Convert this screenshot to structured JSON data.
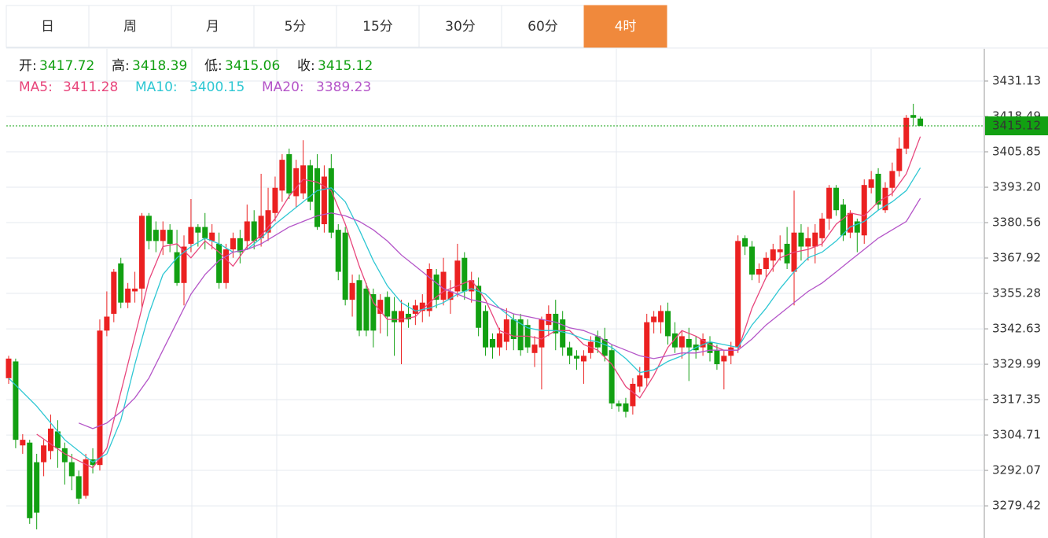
{
  "tabs": [
    "日",
    "周",
    "月",
    "5分",
    "15分",
    "30分",
    "60分",
    "4时"
  ],
  "active_tab": 7,
  "chart_data": {
    "type": "candlestick",
    "ohlc_labels": [
      "开:",
      "高:",
      "低:",
      "收:"
    ],
    "up_color": "#eb2121",
    "down_color": "#12a012",
    "open": [
      3325,
      3331,
      3301,
      3302,
      3295,
      3295,
      3299,
      3306,
      3300,
      3295,
      3290,
      3283,
      3296,
      3294,
      3342,
      3348,
      3366,
      3352,
      3356,
      3357,
      3383,
      3378,
      3374,
      3378,
      3370,
      3359,
      3373,
      3379,
      3379,
      3374,
      3373,
      3359,
      3371,
      3375,
      3374,
      3381,
      3375,
      3377,
      3384,
      3392,
      3405,
      3390,
      3391,
      3401,
      3400,
      3380,
      3400,
      3378,
      3377,
      3353,
      3360,
      3357,
      3355,
      3348,
      3354,
      3349,
      3345,
      3348,
      3348,
      3349,
      3349,
      3362,
      3353,
      3353,
      3356,
      3368,
      3356,
      3358,
      3349,
      3339,
      3336,
      3338,
      3346,
      3346,
      3344,
      3334,
      3336,
      3344,
      3348,
      3346,
      3336,
      3333,
      3331,
      3334,
      3340,
      3339,
      3335,
      3316,
      3316,
      3315,
      3322,
      3325,
      3345,
      3345,
      3349,
      3341,
      3336,
      3339,
      3337,
      3336,
      3338,
      3335,
      3331,
      3333,
      3336,
      3375,
      3372,
      3362,
      3364,
      3367,
      3370,
      3373,
      3363,
      3377,
      3372,
      3372,
      3375,
      3382,
      3393,
      3387,
      3377,
      3381,
      3376,
      3393,
      3398,
      3385,
      3393,
      3399,
      3407,
      3419,
      3417.72
    ],
    "high": [
      3333,
      3332,
      3305,
      3303,
      3298,
      3303,
      3312,
      3310,
      3302,
      3298,
      3292,
      3298,
      3300,
      3346,
      3356,
      3364,
      3368,
      3359,
      3363,
      3384,
      3384,
      3381,
      3381,
      3380,
      3378,
      3376,
      3389,
      3380,
      3384,
      3380,
      3377,
      3373,
      3377,
      3378,
      3387,
      3385,
      3398,
      3393,
      3397,
      3405,
      3407,
      3403,
      3410,
      3403,
      3405,
      3401,
      3405,
      3380,
      3379,
      3362,
      3362,
      3359,
      3357,
      3355,
      3356,
      3354,
      3353,
      3352,
      3353,
      3355,
      3366,
      3364,
      3368,
      3360,
      3373,
      3370,
      3363,
      3361,
      3351,
      3341,
      3343,
      3350,
      3348,
      3348,
      3346,
      3340,
      3347,
      3351,
      3353,
      3349,
      3338,
      3335,
      3335,
      3340,
      3342,
      3343,
      3337,
      3317,
      3318,
      3325,
      3329,
      3348,
      3349,
      3351,
      3352,
      3345,
      3342,
      3343,
      3340,
      3341,
      3340,
      3337,
      3335,
      3338,
      3376,
      3376,
      3374,
      3366,
      3370,
      3373,
      3376,
      3379,
      3392,
      3380,
      3379,
      3380,
      3384,
      3394,
      3394,
      3389,
      3385,
      3382,
      3396,
      3399,
      3400,
      3395,
      3402,
      3411,
      3419,
      3423,
      3418.39
    ],
    "low": [
      3323,
      3300,
      3298,
      3273,
      3271,
      3290,
      3296,
      3293,
      3287,
      3285,
      3280,
      3282,
      3291,
      3292,
      3340,
      3345,
      3350,
      3350,
      3352,
      3350,
      3371,
      3370,
      3369,
      3370,
      3358,
      3351,
      3370,
      3372,
      3371,
      3371,
      3357,
      3357,
      3368,
      3366,
      3371,
      3371,
      3372,
      3374,
      3381,
      3388,
      3389,
      3386,
      3389,
      3385,
      3378,
      3377,
      3375,
      3360,
      3351,
      3347,
      3340,
      3340,
      3336,
      3341,
      3340,
      3333,
      3330,
      3343,
      3344,
      3345,
      3347,
      3350,
      3351,
      3348,
      3354,
      3353,
      3352,
      3340,
      3333,
      3332,
      3333,
      3335,
      3335,
      3333,
      3334,
      3329,
      3321,
      3340,
      3335,
      3333,
      3330,
      3328,
      3323,
      3332,
      3334,
      3331,
      3314,
      3313,
      3311,
      3312,
      3320,
      3322,
      3341,
      3341,
      3337,
      3334,
      3332,
      3324,
      3332,
      3333,
      3331,
      3328,
      3321,
      3330,
      3334,
      3369,
      3360,
      3359,
      3361,
      3363,
      3367,
      3364,
      3351,
      3367,
      3367,
      3366,
      3372,
      3378,
      3383,
      3374,
      3375,
      3370,
      3373,
      3391,
      3385,
      3384,
      3390,
      3397,
      3405,
      3415,
      3415.06
    ],
    "close": [
      3332,
      3303,
      3303,
      3275,
      3277,
      3301,
      3307,
      3300,
      3295,
      3290,
      3282,
      3296,
      3294,
      3342,
      3347,
      3363,
      3352,
      3357,
      3357,
      3383,
      3374,
      3374,
      3378,
      3373,
      3359,
      3372,
      3379,
      3377,
      3375,
      3377,
      3359,
      3371,
      3375,
      3370,
      3381,
      3374,
      3383,
      3385,
      3393,
      3403,
      3391,
      3400,
      3401,
      3388,
      3379,
      3397,
      3377,
      3363,
      3353,
      3359,
      3342,
      3342,
      3342,
      3353,
      3347,
      3345,
      3349,
      3346,
      3351,
      3352,
      3364,
      3353,
      3363,
      3356,
      3367,
      3356,
      3360,
      3343,
      3336,
      3336,
      3341,
      3346,
      3339,
      3335,
      3336,
      3337,
      3346,
      3348,
      3341,
      3336,
      3333,
      3332,
      3333,
      3338,
      3336,
      3333,
      3316,
      3315,
      3313,
      3323,
      3326,
      3345,
      3347,
      3349,
      3340,
      3336,
      3340,
      3336,
      3335,
      3339,
      3334,
      3330,
      3333,
      3336,
      3374,
      3372,
      3362,
      3364,
      3368,
      3371,
      3371,
      3366,
      3377,
      3372,
      3375,
      3377,
      3382,
      3393,
      3385,
      3376,
      3384,
      3377,
      3394,
      3396,
      3387,
      3393,
      3399,
      3407,
      3418,
      3418,
      3415.12
    ],
    "series": [
      {
        "name": "MA5:",
        "color": "#e8467c",
        "x": [
          4,
          8,
          12,
          14,
          16,
          18,
          20,
          22,
          24,
          26,
          28,
          30,
          32,
          34,
          36,
          38,
          40,
          42,
          44,
          46,
          48,
          50,
          52,
          54,
          56,
          58,
          60,
          62,
          64,
          66,
          68,
          70,
          72,
          74,
          76,
          78,
          80,
          82,
          84,
          86,
          88,
          90,
          92,
          94,
          96,
          98,
          100,
          102,
          104,
          106,
          108,
          110,
          112,
          114,
          116,
          118,
          120,
          122,
          124,
          126,
          128,
          130
        ],
        "values": [
          3305,
          3298,
          3293,
          3300,
          3320,
          3340,
          3360,
          3372,
          3373,
          3368,
          3374,
          3370,
          3365,
          3372,
          3376,
          3382,
          3390,
          3396,
          3395,
          3392,
          3380,
          3365,
          3352,
          3346,
          3346,
          3347,
          3352,
          3356,
          3358,
          3360,
          3353,
          3342,
          3340,
          3340,
          3339,
          3342,
          3342,
          3337,
          3335,
          3330,
          3322,
          3318,
          3326,
          3336,
          3342,
          3340,
          3337,
          3335,
          3335,
          3350,
          3361,
          3368,
          3370,
          3371,
          3373,
          3380,
          3384,
          3383,
          3388,
          3391,
          3398,
          3411.28
        ]
      },
      {
        "name": "MA10:",
        "color": "#2ec7d3",
        "x": [
          0,
          4,
          8,
          12,
          14,
          16,
          18,
          20,
          22,
          24,
          26,
          28,
          30,
          32,
          34,
          36,
          38,
          40,
          42,
          44,
          46,
          48,
          50,
          52,
          54,
          56,
          58,
          60,
          62,
          64,
          66,
          68,
          70,
          72,
          74,
          76,
          78,
          80,
          82,
          84,
          86,
          88,
          90,
          92,
          94,
          96,
          98,
          100,
          102,
          104,
          106,
          108,
          110,
          112,
          114,
          116,
          118,
          120,
          122,
          124,
          126,
          128,
          130
        ],
        "values": [
          3325,
          3315,
          3303,
          3295,
          3298,
          3310,
          3330,
          3348,
          3362,
          3368,
          3372,
          3375,
          3373,
          3370,
          3371,
          3375,
          3380,
          3384,
          3388,
          3392,
          3393,
          3388,
          3378,
          3367,
          3358,
          3352,
          3349,
          3350,
          3352,
          3355,
          3357,
          3355,
          3350,
          3346,
          3343,
          3342,
          3342,
          3341,
          3339,
          3338,
          3336,
          3332,
          3327,
          3328,
          3331,
          3333,
          3336,
          3338,
          3337,
          3336,
          3344,
          3350,
          3357,
          3363,
          3368,
          3370,
          3374,
          3379,
          3381,
          3385,
          3388,
          3392,
          3400.15
        ]
      },
      {
        "name": "MA20:",
        "color": "#b455c8",
        "x": [
          10,
          12,
          14,
          16,
          18,
          20,
          22,
          24,
          26,
          28,
          30,
          32,
          34,
          36,
          38,
          40,
          42,
          44,
          46,
          48,
          50,
          52,
          54,
          56,
          58,
          60,
          62,
          64,
          66,
          68,
          70,
          72,
          74,
          76,
          78,
          80,
          82,
          84,
          86,
          88,
          90,
          92,
          94,
          96,
          98,
          100,
          102,
          104,
          106,
          108,
          110,
          112,
          114,
          116,
          118,
          120,
          122,
          124,
          126,
          128,
          130
        ],
        "values": [
          3309,
          3307,
          3309,
          3313,
          3318,
          3325,
          3335,
          3345,
          3355,
          3362,
          3367,
          3370,
          3371,
          3373,
          3376,
          3379,
          3381,
          3383,
          3384,
          3383,
          3381,
          3378,
          3374,
          3369,
          3365,
          3361,
          3357,
          3355,
          3353,
          3352,
          3350,
          3348,
          3347,
          3346,
          3345,
          3343,
          3342,
          3340,
          3337,
          3335,
          3333,
          3332,
          3333,
          3334,
          3334,
          3335,
          3335,
          3335,
          3339,
          3344,
          3348,
          3352,
          3356,
          3359,
          3363,
          3367,
          3371,
          3375,
          3378,
          3381,
          3389.23
        ]
      }
    ],
    "ylim": [
      3267.93,
      3442.65
    ],
    "yticks": [
      3431.13,
      3418.49,
      3405.85,
      {
        "value": 3393.2,
        "label": "3393.20"
      },
      3380.56,
      3367.92,
      3355.28,
      3342.63,
      3329.99,
      3317.35,
      3304.71,
      3292.07,
      3279.42
    ],
    "grid": true
  }
}
